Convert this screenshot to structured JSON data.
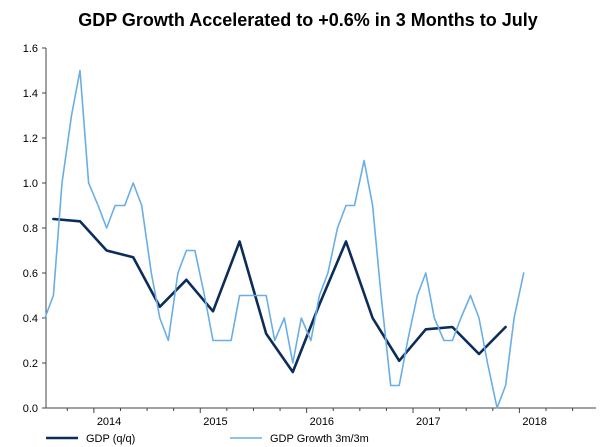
{
  "chart_data": {
    "type": "line",
    "title": "GDP Growth Accelerated to +0.6% in 3 Months to July",
    "xlabel": "",
    "ylabel": "",
    "ylim": [
      0,
      1.6
    ],
    "yticks": [
      0.0,
      0.2,
      0.4,
      0.6,
      0.8,
      1.0,
      1.2,
      1.4,
      1.6
    ],
    "ytick_labels": [
      "0.0",
      "0.2",
      "0.4",
      "0.6",
      "0.8",
      "1.0",
      "1.2",
      "1.4",
      "1.6"
    ],
    "xlim": [
      2013.55,
      2018.72
    ],
    "xticks": [
      2014,
      2015,
      2016,
      2017,
      2018
    ],
    "xtick_labels": [
      "2014",
      "2015",
      "2016",
      "2017",
      "2018"
    ],
    "grid": false,
    "legend_position": "bottom",
    "series": [
      {
        "name": "GDP (q/q)",
        "color": "#0c2d5a",
        "x": [
          2013.62,
          2013.87,
          2014.12,
          2014.37,
          2014.62,
          2014.87,
          2015.12,
          2015.37,
          2015.62,
          2015.87,
          2016.12,
          2016.37,
          2016.62,
          2016.87,
          2017.12,
          2017.37,
          2017.62,
          2017.87,
          2018.12
        ],
        "values": [
          0.84,
          0.83,
          0.7,
          0.67,
          0.45,
          0.57,
          0.43,
          0.74,
          0.33,
          0.16,
          0.46,
          0.74,
          0.4,
          0.21,
          0.35,
          0.36,
          0.24,
          0.36,
          null
        ]
      },
      {
        "name": "GDP Growth 3m/3m",
        "color": "#6aaee6",
        "x": [
          2013.54,
          2013.62,
          2013.7,
          2013.79,
          2013.87,
          2013.95,
          2014.04,
          2014.12,
          2014.2,
          2014.29,
          2014.37,
          2014.45,
          2014.54,
          2014.62,
          2014.7,
          2014.79,
          2014.87,
          2014.95,
          2015.04,
          2015.12,
          2015.2,
          2015.29,
          2015.37,
          2015.45,
          2015.54,
          2015.62,
          2015.7,
          2015.79,
          2015.87,
          2015.95,
          2016.04,
          2016.12,
          2016.2,
          2016.29,
          2016.37,
          2016.45,
          2016.54,
          2016.62,
          2016.7,
          2016.79,
          2016.87,
          2016.95,
          2017.04,
          2017.12,
          2017.2,
          2017.29,
          2017.37,
          2017.45,
          2017.54,
          2017.62,
          2017.7,
          2017.79,
          2017.87,
          2017.95,
          2018.04,
          2018.12,
          2018.2
        ],
        "values": [
          0.4,
          0.5,
          1.0,
          1.3,
          1.5,
          1.0,
          0.9,
          0.8,
          0.9,
          0.9,
          1.0,
          0.9,
          0.6,
          0.4,
          0.3,
          0.6,
          0.7,
          0.7,
          0.5,
          0.3,
          0.3,
          0.3,
          0.5,
          0.5,
          0.5,
          0.5,
          0.3,
          0.4,
          0.2,
          0.4,
          0.3,
          0.5,
          0.6,
          0.8,
          0.9,
          0.9,
          1.1,
          0.9,
          0.5,
          0.1,
          0.1,
          0.3,
          0.5,
          0.6,
          0.4,
          0.3,
          0.3,
          0.4,
          0.5,
          0.4,
          0.2,
          0.0,
          0.1,
          0.4,
          0.6,
          null,
          null
        ]
      }
    ]
  }
}
